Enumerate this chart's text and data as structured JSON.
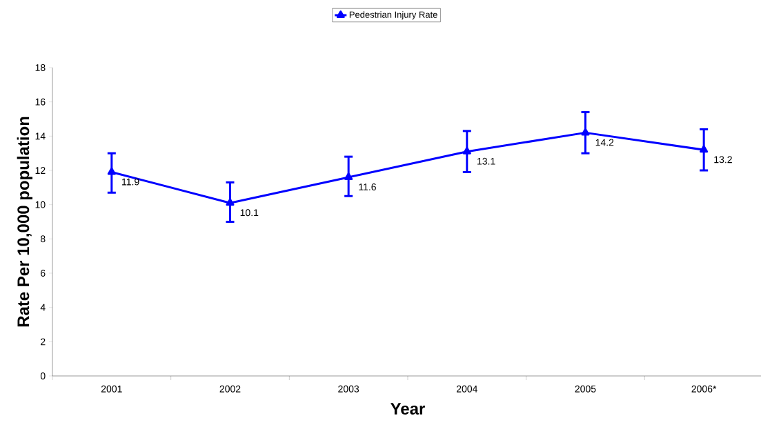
{
  "chart_data": {
    "type": "line",
    "xlabel": "Year",
    "ylabel": "Rate Per 10,000 population",
    "categories": [
      "2001",
      "2002",
      "2003",
      "2004",
      "2005",
      "2006*"
    ],
    "series": [
      {
        "name": "Pedestrian Injury Rate",
        "color": "#0000ff",
        "values": [
          11.9,
          10.1,
          11.6,
          13.1,
          14.2,
          13.2
        ],
        "errors": [
          [
            10.7,
            13.0
          ],
          [
            9.0,
            11.3
          ],
          [
            10.5,
            12.8
          ],
          [
            11.9,
            14.3
          ],
          [
            13.0,
            15.4
          ],
          [
            12.0,
            14.4
          ]
        ]
      }
    ],
    "ylim": [
      0,
      18
    ],
    "yticks": [
      0,
      2,
      4,
      6,
      8,
      10,
      12,
      14,
      16,
      18
    ],
    "data_labels": true,
    "legend": "top",
    "marker": "triangle",
    "line_style": "solid"
  }
}
